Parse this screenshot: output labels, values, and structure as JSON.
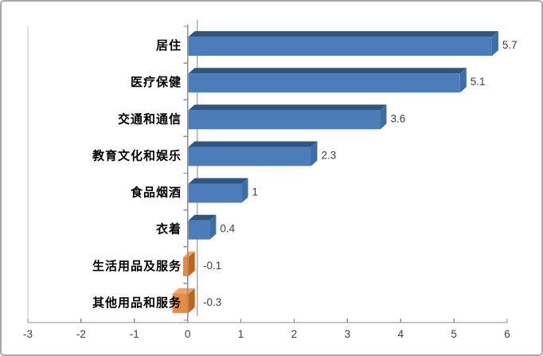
{
  "chart_data": {
    "type": "bar",
    "orientation": "horizontal",
    "style": "3d-bevel",
    "title": "",
    "legend": null,
    "grid": "zero-line-only",
    "categories": [
      "居住",
      "医疗保健",
      "交通和通信",
      "教育文化和娱乐",
      "食品烟酒",
      "衣着",
      "生活用品及服务",
      "其他用品和服务"
    ],
    "values": [
      5.7,
      5.1,
      3.6,
      2.3,
      1,
      0.4,
      -0.1,
      -0.3
    ],
    "data_labels": [
      "5.7",
      "5.1",
      "3.6",
      "2.3",
      "1",
      "0.4",
      "-0.1",
      "-0.3"
    ],
    "x_tick_labels": [
      "-3",
      "-2",
      "-1",
      "0",
      "1",
      "2",
      "3",
      "4",
      "5",
      "6"
    ],
    "x_ticks": [
      -3,
      -2,
      -1,
      0,
      1,
      2,
      3,
      4,
      5,
      6
    ],
    "xlim": [
      -3,
      6
    ],
    "colors": {
      "positive_front": "#4C7DBA",
      "positive_top": "#2D5683",
      "positive_side": "#3F6DA6",
      "negative_front": "#E98B3C",
      "negative_top": "#F1A360",
      "negative_side": "#C06518",
      "axis_line": "#8E8E8E",
      "zero_gridline": "#ACACAC",
      "wall_line": "#C3C3C3",
      "value_text": "#3F3F3F",
      "tick_text": "#3F3F3F",
      "category_text": "#000000",
      "border": "#A8A8A8",
      "background": "#FFFFFF"
    }
  }
}
